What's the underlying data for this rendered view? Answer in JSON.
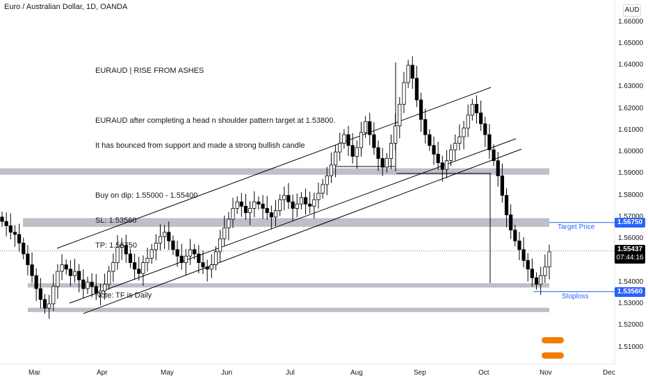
{
  "header": {
    "symbol_title": "Euro / Australian Dollar, 1D, OANDA",
    "currency_button": "AUD"
  },
  "note": {
    "heading": "EURAUD | RISE FROM ASHES",
    "desc1": "EURAUD after completing a head n shoulder pattern target at 1.53800.",
    "desc2": "It has bounced from support and made a strong bullish candle",
    "buy": "Buy on dip: 1.55000 - 1.55400",
    "sl": "SL: 1.53560",
    "tp": "TP: 1.56750",
    "tf": "Note: TF is Daily"
  },
  "annotations": {
    "target": "Target Price",
    "stop": "Stoploss"
  },
  "price_axis": {
    "ticks": [
      "1.66000",
      "1.65000",
      "1.64000",
      "1.63000",
      "1.62000",
      "1.61000",
      "1.60000",
      "1.59000",
      "1.58000",
      "1.57000",
      "1.56000",
      "1.55000",
      "1.54000",
      "1.53000",
      "1.52000",
      "1.51000"
    ],
    "tick_values": [
      1.66,
      1.65,
      1.64,
      1.63,
      1.62,
      1.61,
      1.6,
      1.59,
      1.58,
      1.57,
      1.56,
      1.55,
      1.54,
      1.53,
      1.52,
      1.51
    ],
    "target_tag": "1.56750",
    "last_tag": "1.55437",
    "countdown_tag": "07:44:16",
    "stop_tag": "1.53560"
  },
  "time_axis": {
    "labels": [
      "Mar",
      "Apr",
      "May",
      "Jun",
      "Jul",
      "Aug",
      "Sep",
      "Oct",
      "Nov",
      "Dec"
    ]
  },
  "colors": {
    "candle": "#000000",
    "zone": "#b2b5be",
    "channel": "#000000",
    "tag_blue": "#2962ff",
    "last_tag": "#000000"
  },
  "chart_data": {
    "type": "candlestick",
    "title": "Euro / Australian Dollar, 1D, OANDA",
    "ylim": [
      1.502,
      1.665
    ],
    "x_months": [
      "Mar",
      "Apr",
      "May",
      "Jun",
      "Jul",
      "Aug",
      "Sep",
      "Oct",
      "Nov",
      "Dec"
    ],
    "key_levels": {
      "target": 1.5675,
      "last_price": 1.55437,
      "stoploss": 1.5356
    },
    "zones": [
      {
        "low": 1.5895,
        "high": 1.5925
      },
      {
        "low": 1.5655,
        "high": 1.5695
      },
      {
        "low": 1.5375,
        "high": 1.5395
      },
      {
        "low": 1.5262,
        "high": 1.5282
      }
    ],
    "close_path": [
      [
        0,
        1.568
      ],
      [
        1,
        1.566
      ],
      [
        2,
        1.563
      ],
      [
        3,
        1.562
      ],
      [
        4,
        1.558
      ],
      [
        5,
        1.553
      ],
      [
        6,
        1.548
      ],
      [
        7,
        1.543
      ],
      [
        8,
        1.537
      ],
      [
        9,
        1.532
      ],
      [
        10,
        1.528
      ],
      [
        11,
        1.53
      ],
      [
        12,
        1.538
      ],
      [
        13,
        1.545
      ],
      [
        14,
        1.548
      ],
      [
        15,
        1.546
      ],
      [
        16,
        1.543
      ],
      [
        17,
        1.545
      ],
      [
        18,
        1.541
      ],
      [
        19,
        1.537
      ],
      [
        20,
        1.54
      ],
      [
        21,
        1.538
      ],
      [
        22,
        1.535
      ],
      [
        23,
        1.536
      ],
      [
        24,
        1.539
      ],
      [
        25,
        1.545
      ],
      [
        26,
        1.549
      ],
      [
        27,
        1.556
      ],
      [
        28,
        1.557
      ],
      [
        29,
        1.553
      ],
      [
        30,
        1.549
      ],
      [
        31,
        1.546
      ],
      [
        32,
        1.544
      ],
      [
        33,
        1.549
      ],
      [
        34,
        1.551
      ],
      [
        35,
        1.555
      ],
      [
        36,
        1.558
      ],
      [
        37,
        1.561
      ],
      [
        38,
        1.563
      ],
      [
        39,
        1.559
      ],
      [
        40,
        1.555
      ],
      [
        41,
        1.552
      ],
      [
        42,
        1.549
      ],
      [
        43,
        1.552
      ],
      [
        44,
        1.555
      ],
      [
        45,
        1.553
      ],
      [
        46,
        1.549
      ],
      [
        47,
        1.547
      ],
      [
        48,
        1.546
      ],
      [
        49,
        1.548
      ],
      [
        50,
        1.554
      ],
      [
        51,
        1.56
      ],
      [
        52,
        1.565
      ],
      [
        53,
        1.569
      ],
      [
        54,
        1.574
      ],
      [
        55,
        1.577
      ],
      [
        56,
        1.575
      ],
      [
        57,
        1.572
      ],
      [
        58,
        1.574
      ],
      [
        59,
        1.577
      ],
      [
        60,
        1.576
      ],
      [
        61,
        1.574
      ],
      [
        62,
        1.572
      ],
      [
        63,
        1.57
      ],
      [
        64,
        1.573
      ],
      [
        65,
        1.578
      ],
      [
        66,
        1.58
      ],
      [
        67,
        1.577
      ],
      [
        68,
        1.574
      ],
      [
        69,
        1.576
      ],
      [
        70,
        1.579
      ],
      [
        71,
        1.576
      ],
      [
        72,
        1.575
      ],
      [
        73,
        1.578
      ],
      [
        74,
        1.581
      ],
      [
        75,
        1.585
      ],
      [
        76,
        1.589
      ],
      [
        77,
        1.594
      ],
      [
        78,
        1.6
      ],
      [
        79,
        1.604
      ],
      [
        80,
        1.608
      ],
      [
        81,
        1.603
      ],
      [
        82,
        1.598
      ],
      [
        83,
        1.602
      ],
      [
        84,
        1.609
      ],
      [
        85,
        1.614
      ],
      [
        86,
        1.608
      ],
      [
        87,
        1.602
      ],
      [
        88,
        1.597
      ],
      [
        89,
        1.593
      ],
      [
        90,
        1.597
      ],
      [
        91,
        1.604
      ],
      [
        92,
        1.612
      ],
      [
        93,
        1.622
      ],
      [
        94,
        1.632
      ],
      [
        95,
        1.64
      ],
      [
        96,
        1.634
      ],
      [
        97,
        1.624
      ],
      [
        98,
        1.615
      ],
      [
        99,
        1.608
      ],
      [
        100,
        1.603
      ],
      [
        101,
        1.599
      ],
      [
        102,
        1.595
      ],
      [
        103,
        1.592
      ],
      [
        104,
        1.596
      ],
      [
        105,
        1.601
      ],
      [
        106,
        1.604
      ],
      [
        107,
        1.607
      ],
      [
        108,
        1.611
      ],
      [
        109,
        1.617
      ],
      [
        110,
        1.622
      ],
      [
        111,
        1.618
      ],
      [
        112,
        1.613
      ],
      [
        113,
        1.608
      ],
      [
        114,
        1.601
      ],
      [
        115,
        1.596
      ],
      [
        116,
        1.589
      ],
      [
        117,
        1.58
      ],
      [
        118,
        1.571
      ],
      [
        119,
        1.564
      ],
      [
        120,
        1.559
      ],
      [
        121,
        1.555
      ],
      [
        122,
        1.55
      ],
      [
        123,
        1.546
      ],
      [
        124,
        1.542
      ],
      [
        125,
        1.539
      ],
      [
        126,
        1.543
      ],
      [
        127,
        1.547
      ],
      [
        128,
        1.554
      ]
    ]
  }
}
